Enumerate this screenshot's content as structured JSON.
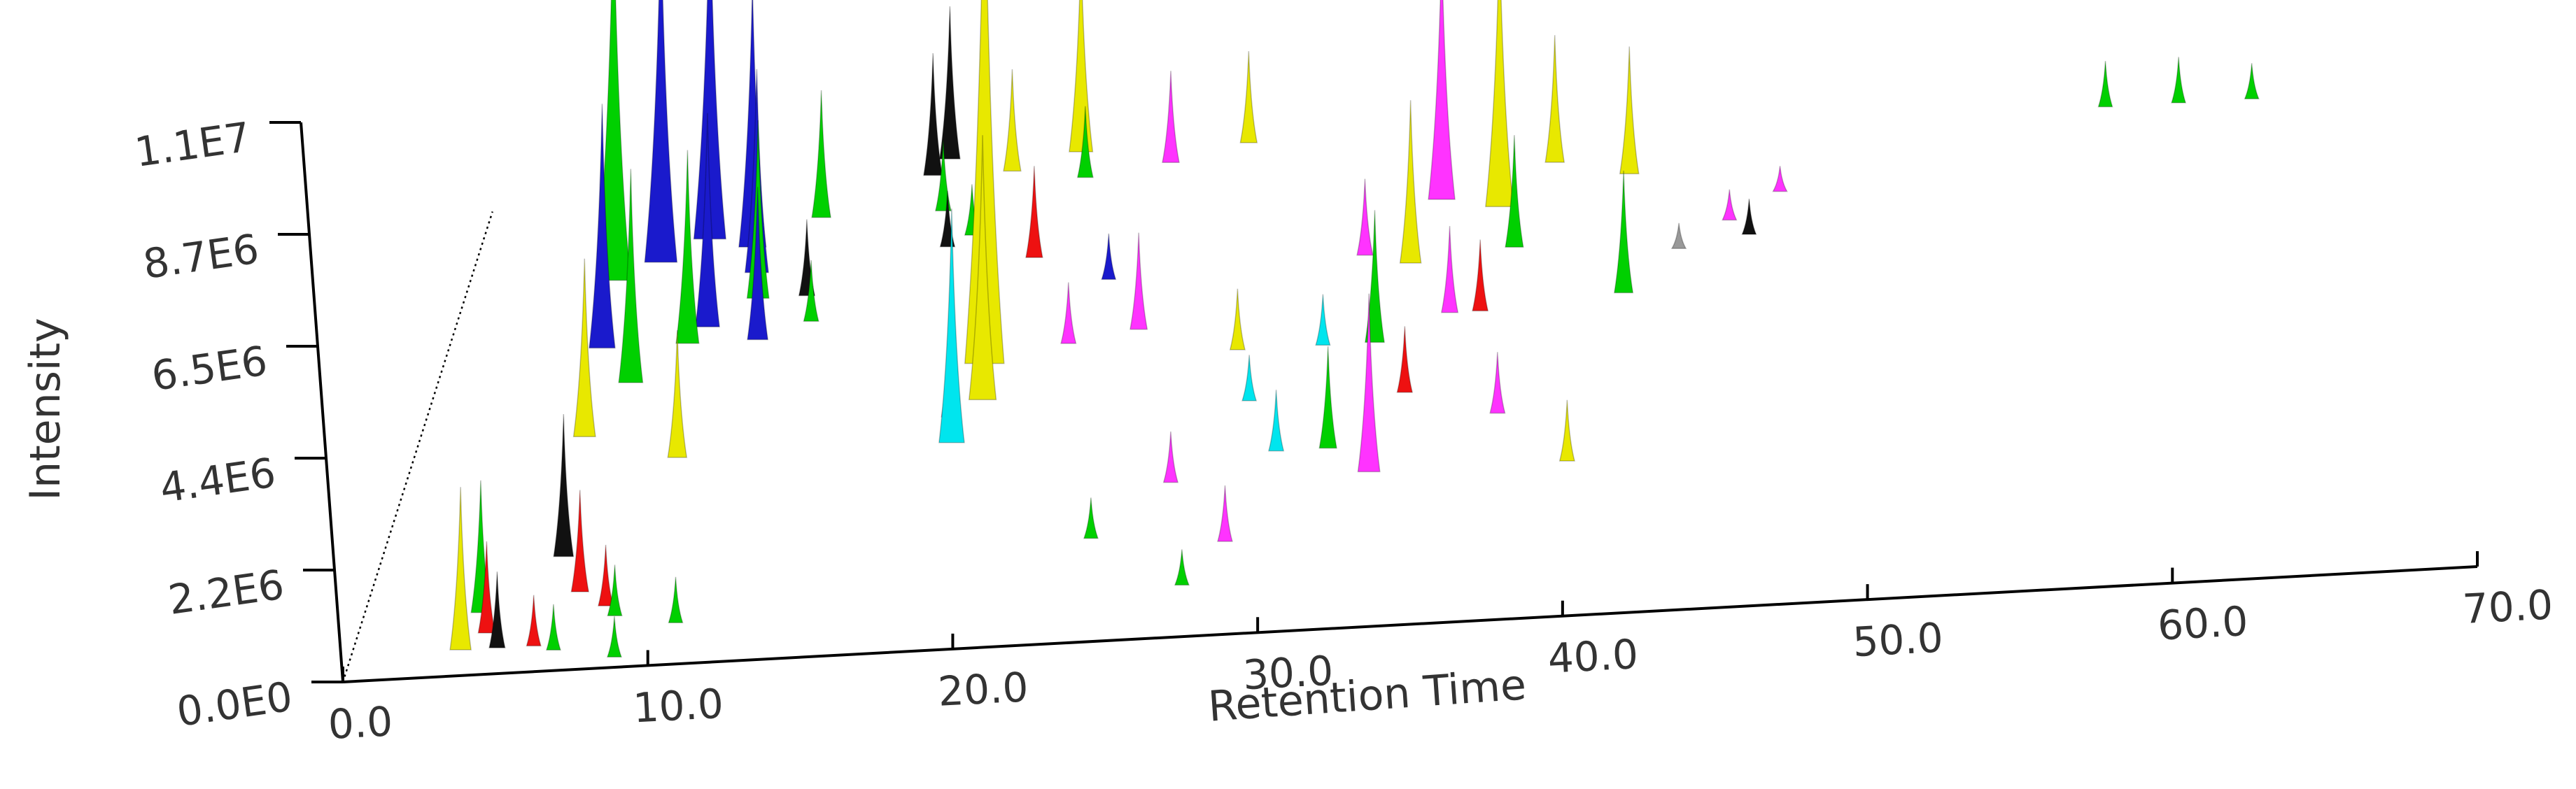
{
  "chart_data": {
    "type": "area",
    "subtype": "3d-stacked-chromatograms",
    "title": "",
    "xlabel": "Retention Time",
    "ylabel": "Intensity",
    "xlim": [
      0,
      70
    ],
    "ylim": [
      0,
      11000000
    ],
    "x_ticks": [
      "0.0",
      "10.0",
      "20.0",
      "30.0",
      "40.0",
      "50.0",
      "60.0",
      "70.0"
    ],
    "y_ticks": [
      "0.0E0",
      "2.2E6",
      "4.4E6",
      "6.5E6",
      "8.7E6",
      "1.1E7"
    ],
    "grid": false,
    "legend": "none",
    "colors": {
      "green": "#00d000",
      "blue": "#1a1acc",
      "yellow": "#e8e800",
      "magenta": "#ff33ff",
      "cyan": "#00e5ee",
      "black": "#111111",
      "red": "#ee1111",
      "gray": "#999999"
    },
    "peaks": [
      {
        "rt": 3.6,
        "i": 3200000,
        "c": "yellow",
        "d": 0.05
      },
      {
        "rt": 3.9,
        "i": 2600000,
        "c": "green",
        "d": 0.12
      },
      {
        "rt": 4.3,
        "i": 1800000,
        "c": "red",
        "d": 0.08
      },
      {
        "rt": 5.0,
        "i": 7500000,
        "c": "green",
        "d": 0.75
      },
      {
        "rt": 5.3,
        "i": 4800000,
        "c": "blue",
        "d": 0.62
      },
      {
        "rt": 5.6,
        "i": 3500000,
        "c": "yellow",
        "d": 0.45
      },
      {
        "rt": 6.1,
        "i": 2800000,
        "c": "black",
        "d": 0.22
      },
      {
        "rt": 6.4,
        "i": 6900000,
        "c": "blue",
        "d": 0.78
      },
      {
        "rt": 6.6,
        "i": 4200000,
        "c": "green",
        "d": 0.55
      },
      {
        "rt": 7.0,
        "i": 2000000,
        "c": "red",
        "d": 0.15
      },
      {
        "rt": 7.8,
        "i": 6800000,
        "c": "blue",
        "d": 0.82
      },
      {
        "rt": 8.1,
        "i": 3800000,
        "c": "green",
        "d": 0.62
      },
      {
        "rt": 8.6,
        "i": 4200000,
        "c": "blue",
        "d": 0.65
      },
      {
        "rt": 8.9,
        "i": 2500000,
        "c": "yellow",
        "d": 0.4
      },
      {
        "rt": 9.3,
        "i": 5200000,
        "c": "blue",
        "d": 0.8
      },
      {
        "rt": 9.7,
        "i": 4000000,
        "c": "blue",
        "d": 0.75
      },
      {
        "rt": 10.0,
        "i": 3500000,
        "c": "green",
        "d": 0.7
      },
      {
        "rt": 10.4,
        "i": 3000000,
        "c": "blue",
        "d": 0.62
      },
      {
        "rt": 8.0,
        "i": 1200000,
        "c": "red",
        "d": 0.12
      },
      {
        "rt": 8.4,
        "i": 1000000,
        "c": "green",
        "d": 0.1
      },
      {
        "rt": 10.5,
        "i": 900000,
        "c": "green",
        "d": 0.08
      },
      {
        "rt": 11.3,
        "i": 2500000,
        "c": "green",
        "d": 0.85
      },
      {
        "rt": 11.6,
        "i": 1500000,
        "c": "black",
        "d": 0.7
      },
      {
        "rt": 12.0,
        "i": 1200000,
        "c": "green",
        "d": 0.65
      },
      {
        "rt": 14.6,
        "i": 2400000,
        "c": "black",
        "d": 0.92
      },
      {
        "rt": 15.0,
        "i": 3000000,
        "c": "black",
        "d": 0.95
      },
      {
        "rt": 15.3,
        "i": 1400000,
        "c": "green",
        "d": 0.85
      },
      {
        "rt": 15.8,
        "i": 1100000,
        "c": "black",
        "d": 0.78
      },
      {
        "rt": 16.5,
        "i": 1000000,
        "c": "green",
        "d": 0.8
      },
      {
        "rt": 17.2,
        "i": 2000000,
        "c": "yellow",
        "d": 0.92
      },
      {
        "rt": 17.6,
        "i": 2200000,
        "c": "magenta",
        "d": 0.45
      },
      {
        "rt": 17.9,
        "i": 4600000,
        "c": "cyan",
        "d": 0.4
      },
      {
        "rt": 18.2,
        "i": 10400000,
        "c": "yellow",
        "d": 0.55
      },
      {
        "rt": 18.5,
        "i": 5200000,
        "c": "yellow",
        "d": 0.48
      },
      {
        "rt": 18.8,
        "i": 1800000,
        "c": "red",
        "d": 0.75
      },
      {
        "rt": 19.3,
        "i": 4000000,
        "c": "yellow",
        "d": 0.95
      },
      {
        "rt": 19.7,
        "i": 1400000,
        "c": "green",
        "d": 0.9
      },
      {
        "rt": 20.8,
        "i": 1200000,
        "c": "magenta",
        "d": 0.58
      },
      {
        "rt": 21.5,
        "i": 900000,
        "c": "blue",
        "d": 0.7
      },
      {
        "rt": 22.4,
        "i": 1800000,
        "c": "magenta",
        "d": 0.92
      },
      {
        "rt": 23.0,
        "i": 1900000,
        "c": "magenta",
        "d": 0.6
      },
      {
        "rt": 23.5,
        "i": 800000,
        "c": "green",
        "d": 0.2
      },
      {
        "rt": 24.8,
        "i": 1800000,
        "c": "yellow",
        "d": 0.95
      },
      {
        "rt": 25.6,
        "i": 1000000,
        "c": "magenta",
        "d": 0.3
      },
      {
        "rt": 26.5,
        "i": 1200000,
        "c": "yellow",
        "d": 0.55
      },
      {
        "rt": 27.0,
        "i": 700000,
        "c": "green",
        "d": 0.1
      },
      {
        "rt": 27.4,
        "i": 900000,
        "c": "cyan",
        "d": 0.45
      },
      {
        "rt": 28.0,
        "i": 1100000,
        "c": "magenta",
        "d": 0.18
      },
      {
        "rt": 28.8,
        "i": 1200000,
        "c": "cyan",
        "d": 0.35
      },
      {
        "rt": 29.3,
        "i": 1000000,
        "c": "cyan",
        "d": 0.55
      },
      {
        "rt": 29.8,
        "i": 1500000,
        "c": "magenta",
        "d": 0.72
      },
      {
        "rt": 30.5,
        "i": 2000000,
        "c": "green",
        "d": 0.35
      },
      {
        "rt": 31.0,
        "i": 2600000,
        "c": "green",
        "d": 0.55
      },
      {
        "rt": 31.4,
        "i": 3200000,
        "c": "yellow",
        "d": 0.7
      },
      {
        "rt": 31.8,
        "i": 5000000,
        "c": "magenta",
        "d": 0.82
      },
      {
        "rt": 32.1,
        "i": 3500000,
        "c": "magenta",
        "d": 0.3
      },
      {
        "rt": 32.5,
        "i": 1300000,
        "c": "red",
        "d": 0.45
      },
      {
        "rt": 33.2,
        "i": 1700000,
        "c": "magenta",
        "d": 0.6
      },
      {
        "rt": 33.8,
        "i": 5400000,
        "c": "yellow",
        "d": 0.8
      },
      {
        "rt": 34.2,
        "i": 1400000,
        "c": "red",
        "d": 0.6
      },
      {
        "rt": 34.7,
        "i": 2200000,
        "c": "green",
        "d": 0.72
      },
      {
        "rt": 35.2,
        "i": 2500000,
        "c": "yellow",
        "d": 0.88
      },
      {
        "rt": 35.8,
        "i": 1200000,
        "c": "magenta",
        "d": 0.4
      },
      {
        "rt": 37.8,
        "i": 2500000,
        "c": "yellow",
        "d": 0.85
      },
      {
        "rt": 38.8,
        "i": 2400000,
        "c": "green",
        "d": 0.62
      },
      {
        "rt": 38.6,
        "i": 1200000,
        "c": "yellow",
        "d": 0.3
      },
      {
        "rt": 40.2,
        "i": 500000,
        "c": "gray",
        "d": 0.7
      },
      {
        "rt": 41.6,
        "i": 600000,
        "c": "magenta",
        "d": 0.75
      },
      {
        "rt": 42.4,
        "i": 700000,
        "c": "black",
        "d": 0.72
      },
      {
        "rt": 43.0,
        "i": 500000,
        "c": "magenta",
        "d": 0.8
      },
      {
        "rt": 4.8,
        "i": 1500000,
        "c": "black",
        "d": 0.05
      },
      {
        "rt": 6.0,
        "i": 1000000,
        "c": "red",
        "d": 0.05
      },
      {
        "rt": 6.7,
        "i": 900000,
        "c": "green",
        "d": 0.04
      },
      {
        "rt": 8.8,
        "i": 800000,
        "c": "green",
        "d": 0.02
      },
      {
        "rt": 53.0,
        "i": 900000,
        "c": "green",
        "d": 0.93
      },
      {
        "rt": 55.4,
        "i": 900000,
        "c": "green",
        "d": 0.93
      },
      {
        "rt": 57.8,
        "i": 700000,
        "c": "green",
        "d": 0.93
      }
    ]
  }
}
